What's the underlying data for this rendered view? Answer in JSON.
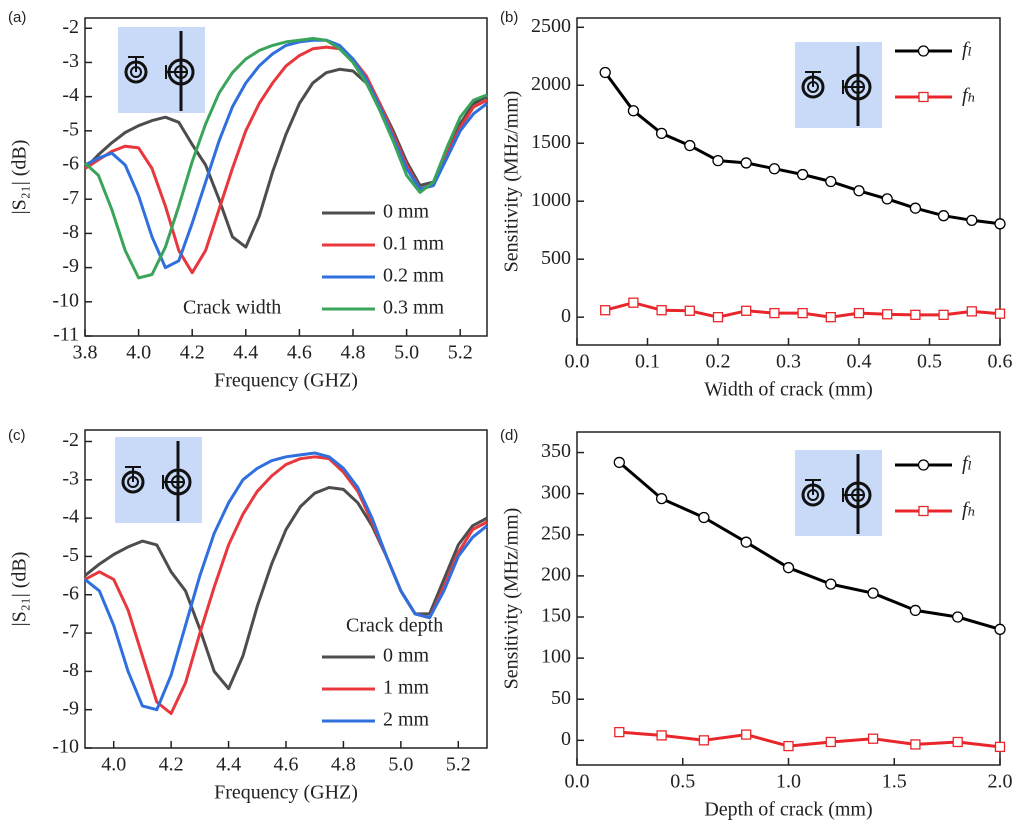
{
  "chart_data": [
    {
      "type": "line",
      "panel_label": "(a)",
      "x_label": "Frequency (GHZ)",
      "y_label": "|S₂₁| (dB)",
      "annotation": "Crack width",
      "legend": "lower right",
      "x": [
        3.8,
        3.85,
        3.9,
        3.95,
        4.0,
        4.05,
        4.1,
        4.15,
        4.2,
        4.25,
        4.3,
        4.35,
        4.4,
        4.45,
        4.5,
        4.55,
        4.6,
        4.65,
        4.7,
        4.75,
        4.8,
        4.85,
        4.9,
        4.95,
        5.0,
        5.05,
        5.1,
        5.15,
        5.2,
        5.25,
        5.3
      ],
      "series": [
        {
          "name": "0 mm",
          "color": "#4d4d4d",
          "values": [
            -6.1,
            -5.7,
            -5.35,
            -5.05,
            -4.85,
            -4.7,
            -4.6,
            -4.75,
            -5.4,
            -6.0,
            -7.0,
            -8.1,
            -8.4,
            -7.5,
            -6.2,
            -5.1,
            -4.2,
            -3.6,
            -3.3,
            -3.2,
            -3.25,
            -3.6,
            -4.2,
            -5.0,
            -5.9,
            -6.6,
            -6.5,
            -5.6,
            -4.8,
            -4.2,
            -4.0
          ]
        },
        {
          "name": "0.1 mm",
          "color": "#e8383d",
          "values": [
            -6.1,
            -5.85,
            -5.6,
            -5.45,
            -5.5,
            -6.1,
            -7.2,
            -8.5,
            -9.15,
            -8.5,
            -7.3,
            -6.1,
            -5.0,
            -4.2,
            -3.6,
            -3.1,
            -2.8,
            -2.6,
            -2.55,
            -2.6,
            -2.9,
            -3.4,
            -4.2,
            -5.1,
            -6.0,
            -6.7,
            -6.6,
            -5.7,
            -4.9,
            -4.3,
            -4.1
          ]
        },
        {
          "name": "0.2 mm",
          "color": "#2f6fde",
          "values": [
            -6.0,
            -5.8,
            -5.65,
            -6.0,
            -6.9,
            -8.1,
            -9.0,
            -8.8,
            -7.7,
            -6.5,
            -5.3,
            -4.3,
            -3.6,
            -3.1,
            -2.75,
            -2.5,
            -2.4,
            -2.35,
            -2.35,
            -2.5,
            -2.9,
            -3.5,
            -4.3,
            -5.2,
            -6.1,
            -6.7,
            -6.6,
            -5.8,
            -5.0,
            -4.5,
            -4.2
          ]
        },
        {
          "name": "0.3 mm",
          "color": "#3aa55a",
          "values": [
            -5.95,
            -6.3,
            -7.3,
            -8.5,
            -9.3,
            -9.2,
            -8.4,
            -7.2,
            -5.9,
            -4.8,
            -3.9,
            -3.3,
            -2.9,
            -2.65,
            -2.5,
            -2.4,
            -2.35,
            -2.3,
            -2.35,
            -2.6,
            -3.0,
            -3.6,
            -4.4,
            -5.3,
            -6.3,
            -6.8,
            -6.5,
            -5.5,
            -4.6,
            -4.1,
            -3.95
          ]
        }
      ],
      "xlim": [
        3.8,
        5.3
      ],
      "xticks": [
        3.8,
        {
          "value": 4,
          "label": "4.0"
        },
        4.2,
        4.4,
        4.6,
        4.8,
        {
          "value": 5,
          "label": "5.0"
        },
        5.2
      ],
      "ylim": [
        -11,
        -1.7
      ],
      "yticks": [
        -11,
        -10,
        -9,
        -8,
        -7,
        -6,
        -5,
        -4,
        -3,
        -2
      ]
    },
    {
      "type": "line",
      "panel_label": "(b)",
      "x_label": "Width of crack (mm)",
      "y_label": "Sensitivity (MHz/mm)",
      "legend": "upper right",
      "x": [
        0.04,
        0.08,
        0.12,
        0.16,
        0.2,
        0.24,
        0.28,
        0.32,
        0.36,
        0.4,
        0.44,
        0.48,
        0.52,
        0.56,
        0.6
      ],
      "series": [
        {
          "name": "fₗ",
          "color": "#000000",
          "marker": "circle",
          "values": [
            2110,
            1780,
            1585,
            1480,
            1350,
            1330,
            1280,
            1230,
            1170,
            1090,
            1020,
            940,
            875,
            835,
            805
          ]
        },
        {
          "name": "fₕ",
          "color": "#e8262b",
          "marker": "square",
          "values": [
            60,
            125,
            60,
            55,
            0,
            55,
            35,
            35,
            0,
            35,
            25,
            20,
            20,
            50,
            30
          ]
        }
      ],
      "xlim": [
        0,
        0.6
      ],
      "xticks": [
        {
          "value": 0,
          "label": "0.0"
        },
        0.1,
        0.2,
        0.3,
        0.4,
        0.5,
        0.6
      ],
      "ylim": [
        -240,
        2580
      ],
      "yticks": [
        0,
        500,
        1000,
        1500,
        2000,
        2500
      ]
    },
    {
      "type": "line",
      "panel_label": "(c)",
      "x_label": "Frequency (GHZ)",
      "y_label": "|S₂₁| (dB)",
      "annotation": "Crack depth",
      "legend": "lower right",
      "x": [
        3.9,
        3.95,
        4.0,
        4.05,
        4.1,
        4.15,
        4.2,
        4.25,
        4.3,
        4.35,
        4.4,
        4.45,
        4.5,
        4.55,
        4.6,
        4.65,
        4.7,
        4.75,
        4.8,
        4.85,
        4.9,
        4.95,
        5.0,
        5.05,
        5.1,
        5.15,
        5.2,
        5.25,
        5.3
      ],
      "series": [
        {
          "name": "0 mm",
          "color": "#4d4d4d",
          "values": [
            -5.5,
            -5.2,
            -4.95,
            -4.75,
            -4.6,
            -4.7,
            -5.4,
            -5.9,
            -6.9,
            -8.0,
            -8.45,
            -7.6,
            -6.3,
            -5.2,
            -4.3,
            -3.7,
            -3.35,
            -3.2,
            -3.25,
            -3.6,
            -4.2,
            -5.0,
            -5.9,
            -6.5,
            -6.5,
            -5.6,
            -4.7,
            -4.2,
            -4.0
          ]
        },
        {
          "name": "1 mm",
          "color": "#e8383d",
          "values": [
            -5.6,
            -5.4,
            -5.6,
            -6.4,
            -7.6,
            -8.8,
            -9.1,
            -8.3,
            -7.0,
            -5.8,
            -4.7,
            -3.9,
            -3.3,
            -2.9,
            -2.6,
            -2.45,
            -2.4,
            -2.45,
            -2.8,
            -3.3,
            -4.1,
            -5.0,
            -5.9,
            -6.5,
            -6.6,
            -5.8,
            -4.9,
            -4.3,
            -4.1
          ]
        },
        {
          "name": "2 mm",
          "color": "#2f6fde",
          "values": [
            -5.6,
            -5.9,
            -6.8,
            -8.0,
            -8.9,
            -9.0,
            -8.1,
            -6.8,
            -5.5,
            -4.4,
            -3.6,
            -3.0,
            -2.7,
            -2.5,
            -2.4,
            -2.35,
            -2.3,
            -2.4,
            -2.7,
            -3.2,
            -4.0,
            -5.0,
            -5.9,
            -6.5,
            -6.6,
            -5.9,
            -5.0,
            -4.5,
            -4.2
          ]
        }
      ],
      "xlim": [
        3.9,
        5.3
      ],
      "xticks": [
        {
          "value": 4,
          "label": "4.0"
        },
        4.2,
        4.4,
        4.6,
        4.8,
        {
          "value": 5,
          "label": "5.0"
        },
        5.2
      ],
      "ylim": [
        -10,
        -1.7
      ],
      "yticks": [
        -10,
        -9,
        -8,
        -7,
        -6,
        -5,
        -4,
        -3,
        -2
      ]
    },
    {
      "type": "line",
      "panel_label": "(d)",
      "x_label": "Depth of crack (mm)",
      "y_label": "Sensitivity (MHz/mm)",
      "legend": "upper right",
      "x": [
        0.2,
        0.4,
        0.6,
        0.8,
        1.0,
        1.2,
        1.4,
        1.6,
        1.8,
        2.0
      ],
      "series": [
        {
          "name": "fₗ",
          "color": "#000000",
          "marker": "circle",
          "values": [
            338,
            294,
            271,
            241,
            210,
            190,
            179,
            158,
            150,
            135
          ]
        },
        {
          "name": "fₕ",
          "color": "#e8262b",
          "marker": "square",
          "values": [
            10,
            6,
            0,
            7,
            -7,
            -2,
            2,
            -5,
            -2,
            -8
          ]
        }
      ],
      "xlim": [
        0,
        2
      ],
      "xticks": [
        {
          "value": 0,
          "label": "0.0"
        },
        0.5,
        {
          "value": 1,
          "label": "1.0"
        },
        1.5,
        {
          "value": 2,
          "label": "2.0"
        }
      ],
      "ylim": [
        -30,
        375
      ],
      "yticks": [
        0,
        50,
        100,
        150,
        200,
        250,
        300,
        350
      ]
    }
  ]
}
